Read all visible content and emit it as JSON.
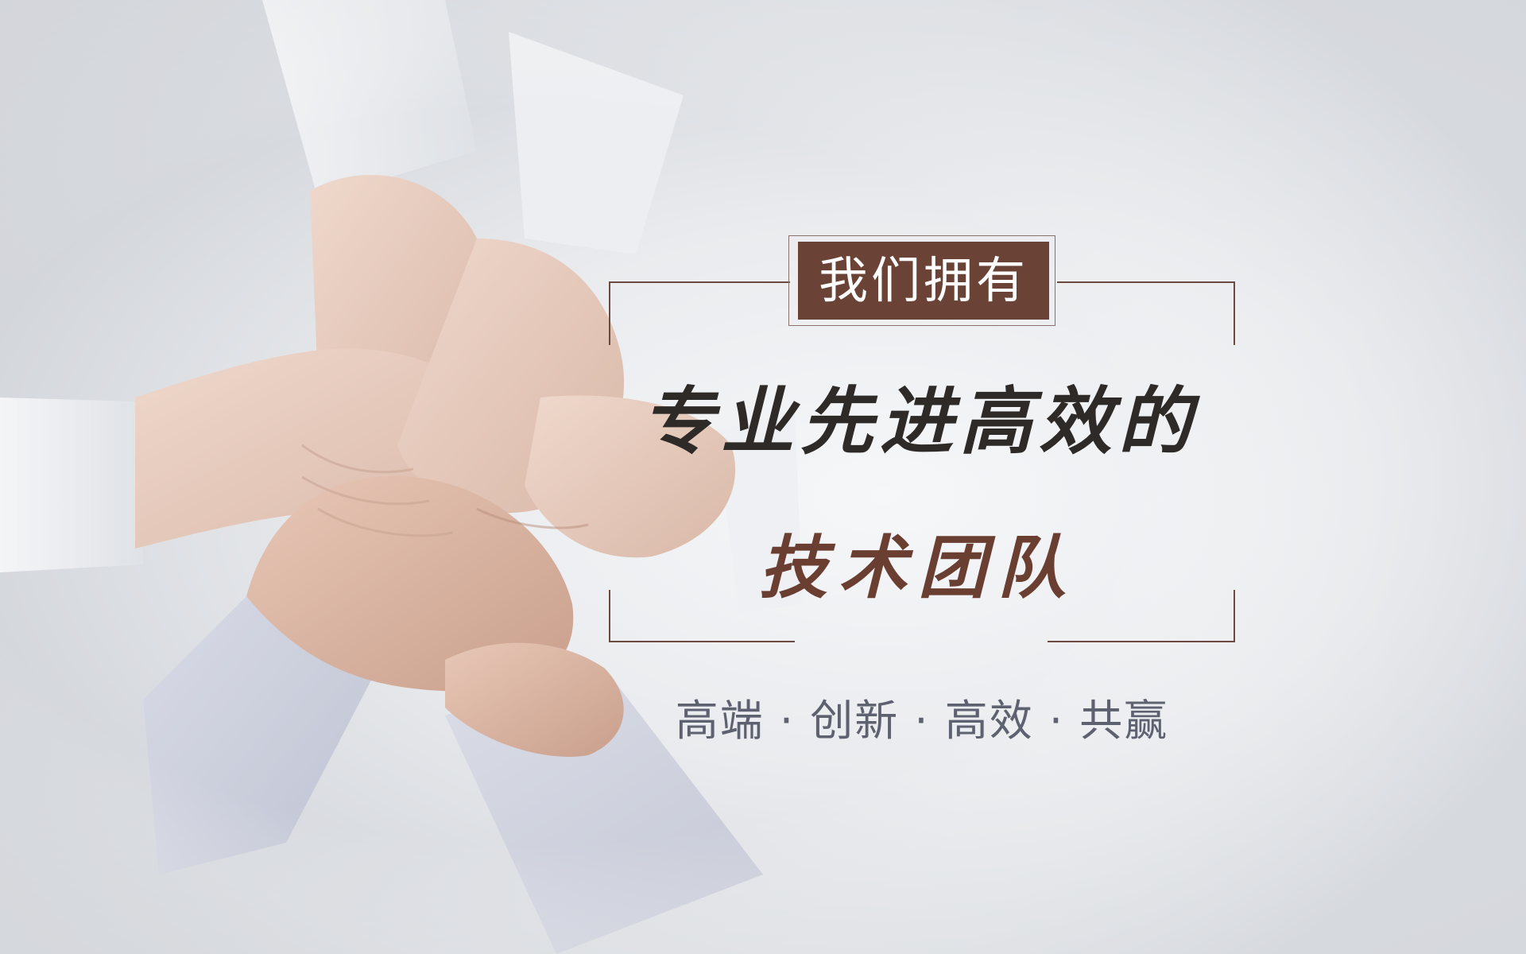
{
  "banner": {
    "label": "我们拥有",
    "headline": "专业先进高效的",
    "subheadline": "技术团队",
    "tagline": "高端 · 创新 · 高效 · 共赢"
  },
  "photo": {
    "subject": "stacked-hands-photo"
  },
  "colors": {
    "label_bg": "#6b4236",
    "frame": "#6b4a40",
    "headline": "#2e2a28",
    "subheadline": "#6b3e32",
    "tagline": "#5e6270"
  }
}
